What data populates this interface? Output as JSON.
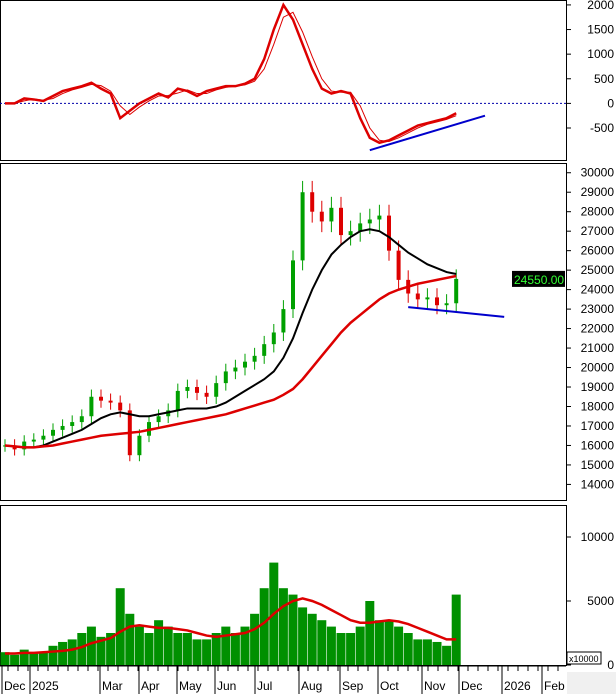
{
  "chart_data": [
    {
      "type": "line",
      "panel": "oscillator",
      "yticks": [
        2000,
        1500,
        1000,
        500,
        0,
        -500
      ],
      "ylim": [
        -1150,
        2100
      ],
      "series": [
        {
          "color": "#dd0000",
          "values": [
            0,
            0,
            100,
            80,
            50,
            150,
            250,
            300,
            350,
            420,
            300,
            200,
            -300,
            -150,
            0,
            100,
            200,
            120,
            300,
            250,
            150,
            250,
            300,
            350,
            350,
            400,
            500,
            900,
            1500,
            2000,
            1700,
            1200,
            700,
            300,
            200,
            250,
            200,
            -300,
            -700,
            -800,
            -750,
            -650,
            -550,
            -450,
            -400,
            -350,
            -300,
            -200
          ]
        }
      ],
      "zero_line_color": "#0000aa",
      "trendline": {
        "from": [
          38,
          -950
        ],
        "to": [
          50,
          -250
        ],
        "color": "#0000cc"
      }
    },
    {
      "type": "candlestick",
      "panel": "price",
      "yticks": [
        30000,
        29000,
        28000,
        27000,
        26000,
        25000,
        24000,
        23000,
        22000,
        21000,
        20000,
        19000,
        18000,
        17000,
        16000,
        15000,
        14000
      ],
      "ylim": [
        13200,
        30500
      ],
      "close": [
        16000,
        15800,
        16200,
        16300,
        16500,
        16800,
        17000,
        17200,
        17500,
        18500,
        18300,
        18200,
        17800,
        15500,
        16500,
        17200,
        17500,
        17800,
        18800,
        19000,
        18700,
        18500,
        19200,
        19800,
        20000,
        20300,
        20600,
        21200,
        21800,
        23000,
        25500,
        29000,
        28000,
        27500,
        28200,
        26800,
        27000,
        27400,
        27600,
        27800,
        26000,
        24500,
        23800,
        23500,
        23600,
        23200,
        23300,
        24550
      ],
      "ma_fast": {
        "color": "#000000",
        "values": [
          16000,
          15950,
          15900,
          15900,
          16000,
          16200,
          16400,
          16600,
          16800,
          17100,
          17400,
          17600,
          17700,
          17600,
          17500,
          17500,
          17600,
          17700,
          17800,
          17900,
          17900,
          17900,
          18000,
          18200,
          18500,
          18800,
          19100,
          19400,
          19800,
          20500,
          21500,
          22800,
          24000,
          25000,
          25800,
          26300,
          26700,
          27000,
          27100,
          27000,
          26700,
          26300,
          25900,
          25600,
          25300,
          25100,
          24900,
          24800
        ]
      },
      "ma_slow": {
        "color": "#dd0000",
        "values": [
          16000,
          15950,
          15900,
          15900,
          15950,
          16000,
          16100,
          16200,
          16300,
          16400,
          16500,
          16550,
          16600,
          16650,
          16700,
          16800,
          16900,
          17000,
          17100,
          17200,
          17300,
          17400,
          17500,
          17600,
          17750,
          17900,
          18050,
          18200,
          18350,
          18600,
          18900,
          19400,
          20000,
          20600,
          21200,
          21800,
          22300,
          22700,
          23100,
          23500,
          23800,
          24000,
          24150,
          24300,
          24400,
          24500,
          24600,
          24700
        ]
      },
      "trendline": {
        "from": [
          42,
          23100
        ],
        "to": [
          52,
          22600
        ],
        "color": "#0000cc"
      },
      "last_price_label": "24550.00"
    },
    {
      "type": "bar",
      "panel": "volume",
      "yticks": [
        10000,
        5000,
        0
      ],
      "unit_label": "x10000",
      "ylim": [
        0,
        12500
      ],
      "values": [
        1000,
        800,
        1200,
        900,
        1000,
        1500,
        1800,
        2000,
        2500,
        3000,
        2200,
        2500,
        6000,
        4000,
        3000,
        2500,
        3500,
        3000,
        2500,
        2500,
        2000,
        2000,
        2500,
        3000,
        2500,
        3000,
        4000,
        6000,
        8000,
        6000,
        5500,
        4500,
        4000,
        3500,
        3000,
        2500,
        2500,
        3000,
        5000,
        3500,
        3500,
        3000,
        2500,
        2000,
        2000,
        1800,
        1500,
        5500
      ],
      "ma": {
        "color": "#dd0000",
        "values": [
          900,
          900,
          950,
          950,
          1000,
          1050,
          1100,
          1200,
          1400,
          1700,
          1900,
          2100,
          2600,
          3000,
          3100,
          3000,
          2900,
          2900,
          2800,
          2700,
          2500,
          2300,
          2200,
          2300,
          2400,
          2500,
          2800,
          3300,
          4000,
          4600,
          5000,
          5200,
          5000,
          4700,
          4300,
          3900,
          3500,
          3300,
          3300,
          3400,
          3500,
          3400,
          3200,
          2900,
          2600,
          2300,
          2000,
          2000
        ]
      },
      "bar_color": "#009000"
    }
  ],
  "x_axis": {
    "labels": [
      "Dec",
      "2025",
      "Mar",
      "Apr",
      "May",
      "Jun",
      "Jul",
      "Aug",
      "Sep",
      "Oct",
      "Nov",
      "Dec",
      "2026",
      "Feb"
    ]
  }
}
